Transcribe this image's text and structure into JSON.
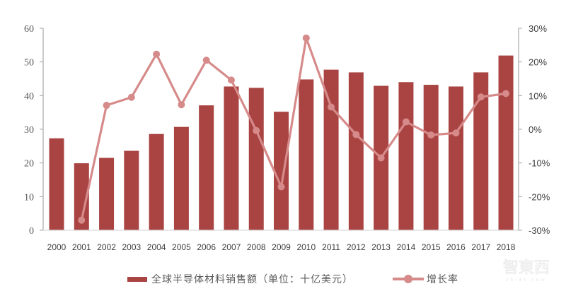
{
  "chart_data": {
    "type": "bar+line",
    "title": "",
    "categories": [
      "2000",
      "2001",
      "2002",
      "2003",
      "2004",
      "2005",
      "2006",
      "2007",
      "2008",
      "2009",
      "2010",
      "2011",
      "2012",
      "2013",
      "2014",
      "2015",
      "2016",
      "2017",
      "2018"
    ],
    "series": [
      {
        "name": "全球半导体材料销售额（单位：十亿美元）",
        "type": "bar",
        "axis": "left",
        "color": "#A94442",
        "values": [
          27.3,
          19.9,
          21.5,
          23.6,
          28.6,
          30.7,
          37.1,
          42.7,
          42.3,
          35.2,
          44.8,
          47.7,
          46.9,
          42.9,
          44.0,
          43.2,
          42.7,
          46.9,
          51.9
        ]
      },
      {
        "name": "增长率",
        "type": "line",
        "axis": "right",
        "color": "#D68A8A",
        "unit": "%",
        "values": [
          null,
          -27.0,
          7.1,
          9.5,
          22.3,
          7.3,
          20.5,
          14.6,
          -0.4,
          -17.1,
          27.1,
          6.6,
          -1.6,
          -8.5,
          2.2,
          -1.7,
          -1.1,
          9.6,
          10.6
        ]
      }
    ],
    "left_axis": {
      "ylim": [
        0,
        60
      ],
      "ticks": [
        "0",
        "10",
        "20",
        "30",
        "40",
        "50",
        "60"
      ]
    },
    "right_axis": {
      "ylim": [
        -30,
        30
      ],
      "ticks": [
        "-30%",
        "-20%",
        "-10%",
        "0%",
        "10%",
        "20%",
        "30%"
      ]
    },
    "xlabel": "",
    "ylabel": "",
    "grid": false,
    "legend_position": "bottom"
  },
  "legend": {
    "bar_label": "全球半导体材料销售额（单位：十亿美元）",
    "line_label": "增长率"
  },
  "colors": {
    "bar": "#A94442",
    "line": "#D68A8A",
    "axis": "#A6A6A6"
  },
  "watermark": {
    "text": "智東西",
    "sub": "zhidx.com"
  }
}
